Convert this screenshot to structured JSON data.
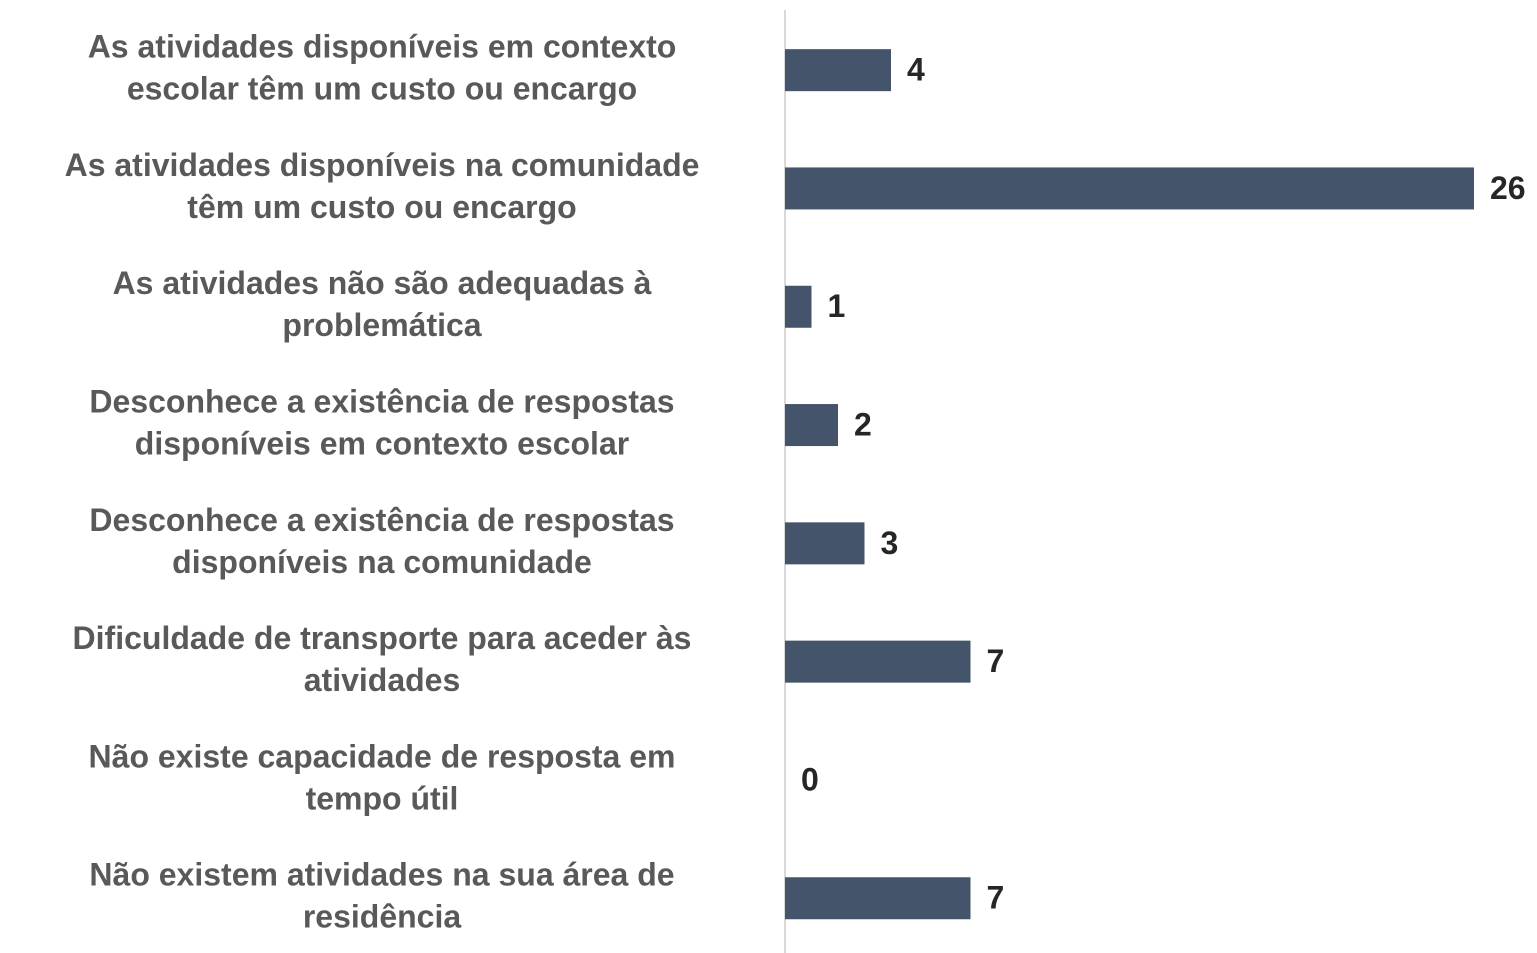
{
  "chart_data": {
    "type": "bar",
    "orientation": "horizontal",
    "categories": [
      [
        "As atividades disponíveis em contexto",
        "escolar têm um custo ou encargo"
      ],
      [
        "As atividades disponíveis na comunidade",
        "têm um custo ou encargo"
      ],
      [
        "As atividades não são adequadas à",
        "problemática"
      ],
      [
        "Desconhece a existência de respostas",
        "disponíveis em contexto escolar"
      ],
      [
        "Desconhece a existência de respostas",
        "disponíveis na comunidade"
      ],
      [
        "Dificuldade de transporte para aceder às",
        "atividades"
      ],
      [
        "Não existe capacidade de resposta em",
        "tempo útil"
      ],
      [
        "Não existem atividades na sua área de",
        "residência"
      ]
    ],
    "values": [
      4,
      26,
      1,
      2,
      3,
      7,
      0,
      7
    ],
    "color": "#44546a"
  }
}
